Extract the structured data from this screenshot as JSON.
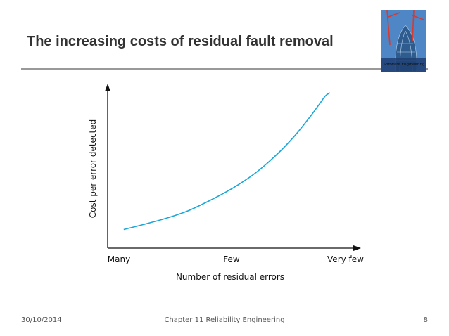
{
  "slide": {
    "title": "The increasing costs of residual fault removal",
    "footer_date": "30/10/2014",
    "footer_chapter": "Chapter 11 Reliability Engineering",
    "page_number": "8",
    "cover": {
      "label": "Software Engineering",
      "sky_color": "#4f86c6",
      "crane_color": "#d83a2e"
    }
  },
  "chart_data": {
    "type": "line",
    "title": "",
    "xlabel": "Number of residual errors",
    "ylabel": "Cost per error detected",
    "categories": [
      "Many",
      "Few",
      "Very few"
    ],
    "xlim": [
      0,
      1.05
    ],
    "ylim": [
      0,
      1.0
    ],
    "grid": false,
    "legend": "none",
    "line_color": "#1aa7d8",
    "series": [
      {
        "x": [
          0.07,
          0.15,
          0.25,
          0.35,
          0.45,
          0.55,
          0.65,
          0.75,
          0.82,
          0.88,
          0.92,
          0.95,
          0.97
        ],
        "values": [
          0.12,
          0.15,
          0.19,
          0.24,
          0.31,
          0.39,
          0.49,
          0.62,
          0.73,
          0.84,
          0.92,
          0.98,
          1.0
        ]
      }
    ]
  }
}
